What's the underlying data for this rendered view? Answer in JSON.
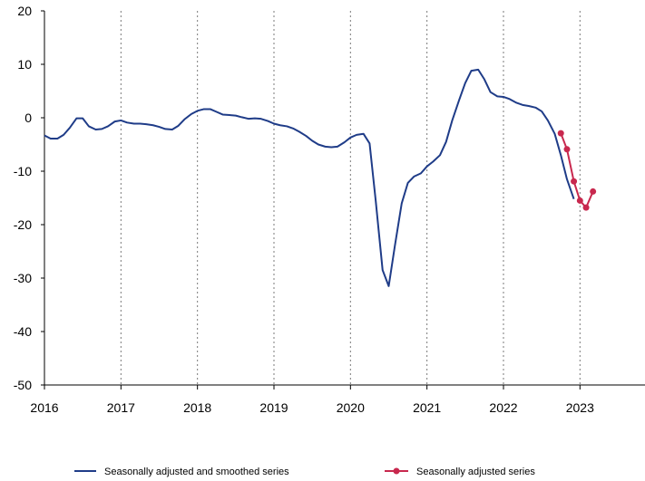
{
  "chart_data": {
    "type": "line",
    "title": "",
    "xlabel": "",
    "ylabel": "",
    "xlim": [
      2016,
      2023.85
    ],
    "ylim": [
      -50,
      20
    ],
    "x_ticks": [
      2016,
      2017,
      2018,
      2019,
      2020,
      2021,
      2022,
      2023
    ],
    "x_tick_labels": [
      "2016",
      "2017",
      "2018",
      "2019",
      "2020",
      "2021",
      "2022",
      "2023"
    ],
    "y_ticks": [
      20,
      10,
      0,
      -10,
      -20,
      -30,
      -40,
      -50
    ],
    "y_tick_labels": [
      "20",
      "10",
      "0",
      "-10",
      "-20",
      "-30",
      "-40",
      "-50"
    ],
    "grid": "vertical dotted at years 2017-2023",
    "legend_position": "bottom",
    "series": [
      {
        "name": "Seasonally adjusted and smoothed series",
        "color": "#1f3c88",
        "marker": "none",
        "points": [
          [
            2016.0,
            -3.3
          ],
          [
            2016.08,
            -3.9
          ],
          [
            2016.17,
            -3.9
          ],
          [
            2016.25,
            -3.2
          ],
          [
            2016.33,
            -1.9
          ],
          [
            2016.42,
            -0.1
          ],
          [
            2016.5,
            -0.1
          ],
          [
            2016.58,
            -1.6
          ],
          [
            2016.67,
            -2.2
          ],
          [
            2016.75,
            -2.1
          ],
          [
            2016.83,
            -1.6
          ],
          [
            2016.92,
            -0.7
          ],
          [
            2017.0,
            -0.5
          ],
          [
            2017.08,
            -0.9
          ],
          [
            2017.17,
            -1.1
          ],
          [
            2017.25,
            -1.1
          ],
          [
            2017.33,
            -1.2
          ],
          [
            2017.42,
            -1.4
          ],
          [
            2017.5,
            -1.7
          ],
          [
            2017.58,
            -2.1
          ],
          [
            2017.67,
            -2.2
          ],
          [
            2017.75,
            -1.5
          ],
          [
            2017.83,
            -0.3
          ],
          [
            2017.92,
            0.7
          ],
          [
            2018.0,
            1.3
          ],
          [
            2018.08,
            1.6
          ],
          [
            2018.17,
            1.6
          ],
          [
            2018.25,
            1.1
          ],
          [
            2018.33,
            0.6
          ],
          [
            2018.42,
            0.5
          ],
          [
            2018.5,
            0.4
          ],
          [
            2018.58,
            0.1
          ],
          [
            2018.67,
            -0.2
          ],
          [
            2018.75,
            -0.1
          ],
          [
            2018.83,
            -0.2
          ],
          [
            2018.92,
            -0.6
          ],
          [
            2019.0,
            -1.1
          ],
          [
            2019.08,
            -1.4
          ],
          [
            2019.17,
            -1.6
          ],
          [
            2019.25,
            -2.0
          ],
          [
            2019.33,
            -2.6
          ],
          [
            2019.42,
            -3.4
          ],
          [
            2019.5,
            -4.3
          ],
          [
            2019.58,
            -5.0
          ],
          [
            2019.67,
            -5.4
          ],
          [
            2019.75,
            -5.5
          ],
          [
            2019.83,
            -5.4
          ],
          [
            2019.92,
            -4.6
          ],
          [
            2020.0,
            -3.7
          ],
          [
            2020.08,
            -3.2
          ],
          [
            2020.17,
            -3.0
          ],
          [
            2020.25,
            -4.8
          ],
          [
            2020.33,
            -15.5
          ],
          [
            2020.42,
            -28.5
          ],
          [
            2020.5,
            -31.5
          ],
          [
            2020.58,
            -24.0
          ],
          [
            2020.67,
            -16.0
          ],
          [
            2020.75,
            -12.2
          ],
          [
            2020.83,
            -11.0
          ],
          [
            2020.92,
            -10.4
          ],
          [
            2021.0,
            -9.1
          ],
          [
            2021.08,
            -8.2
          ],
          [
            2021.17,
            -7.0
          ],
          [
            2021.25,
            -4.5
          ],
          [
            2021.33,
            -0.5
          ],
          [
            2021.42,
            3.3
          ],
          [
            2021.5,
            6.5
          ],
          [
            2021.58,
            8.8
          ],
          [
            2021.67,
            9.0
          ],
          [
            2021.75,
            7.2
          ],
          [
            2021.83,
            4.8
          ],
          [
            2021.92,
            4.0
          ],
          [
            2022.0,
            3.9
          ],
          [
            2022.08,
            3.5
          ],
          [
            2022.17,
            2.8
          ],
          [
            2022.25,
            2.4
          ],
          [
            2022.33,
            2.2
          ],
          [
            2022.42,
            1.9
          ],
          [
            2022.5,
            1.2
          ],
          [
            2022.58,
            -0.5
          ],
          [
            2022.67,
            -3.0
          ],
          [
            2022.75,
            -7.0
          ],
          [
            2022.83,
            -11.5
          ],
          [
            2022.92,
            -15.2
          ]
        ]
      },
      {
        "name": "Seasonally adjusted series",
        "color": "#c8284e",
        "marker": "circle",
        "points": [
          [
            2022.75,
            -2.9
          ],
          [
            2022.83,
            -5.9
          ],
          [
            2022.92,
            -11.9
          ],
          [
            2023.0,
            -15.5
          ],
          [
            2023.08,
            -16.8
          ],
          [
            2023.17,
            -13.8
          ]
        ]
      }
    ]
  }
}
